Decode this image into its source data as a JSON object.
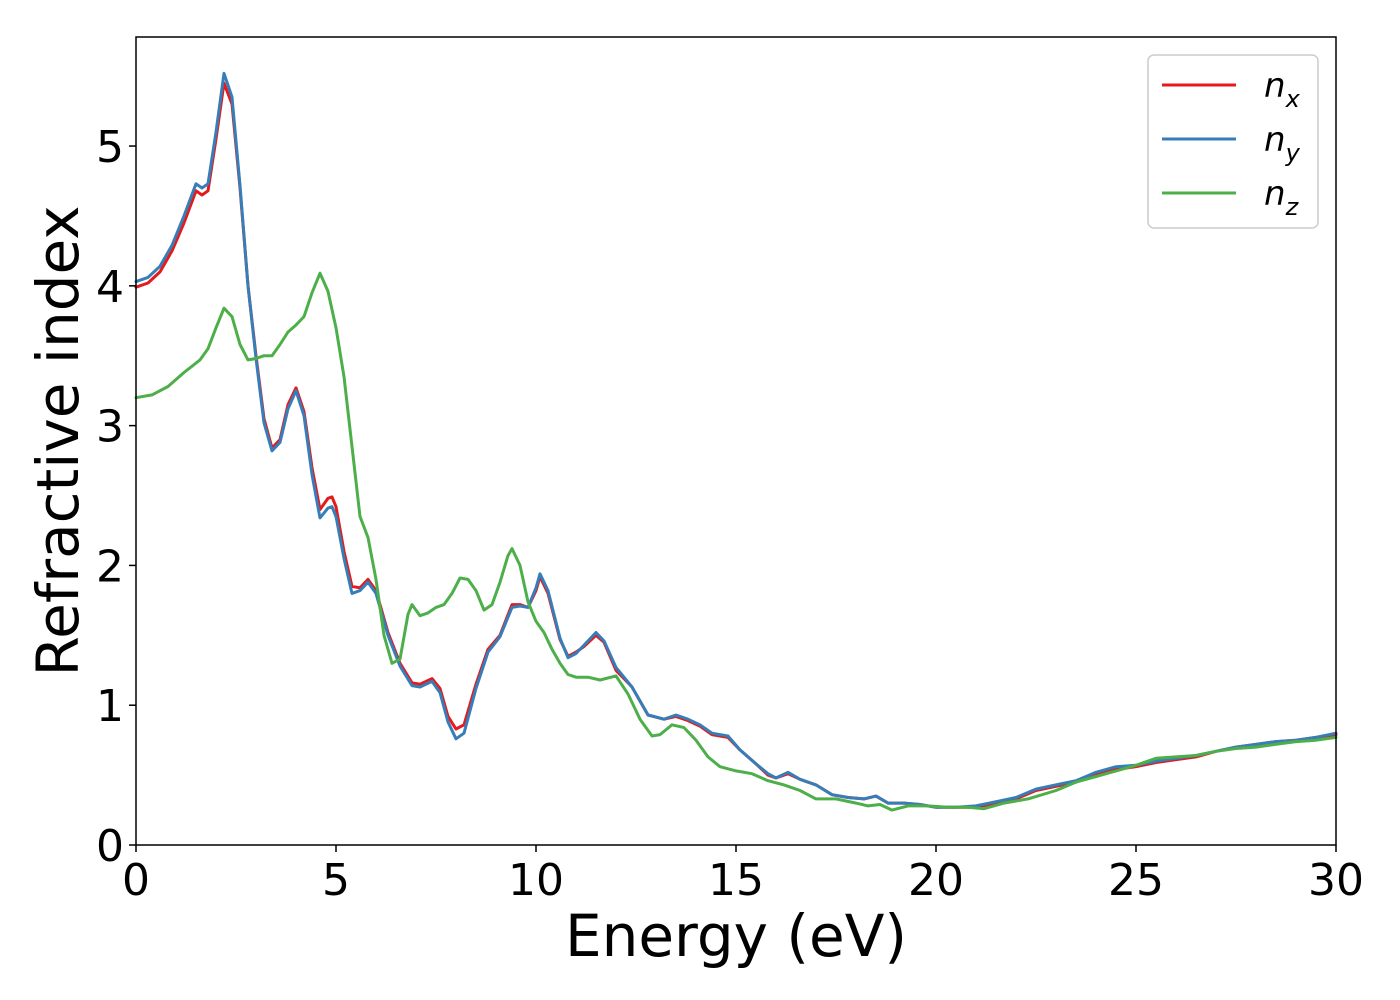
{
  "chart_data": {
    "type": "line",
    "title": "",
    "xlabel": "Energy (eV)",
    "ylabel": "Refractive index",
    "xlim": [
      0,
      30
    ],
    "ylim": [
      0,
      5.78
    ],
    "xticks": [
      0,
      5,
      10,
      15,
      20,
      25,
      30
    ],
    "xtick_labels": [
      "0",
      "5",
      "10",
      "15",
      "20",
      "25",
      "30"
    ],
    "yticks": [
      0,
      1,
      2,
      3,
      4,
      5
    ],
    "ytick_labels": [
      "0",
      "1",
      "2",
      "3",
      "4",
      "5"
    ],
    "grid": false,
    "legend_position": "top-right",
    "series": [
      {
        "name": "n_x",
        "legend_main": "n",
        "legend_sub": "x",
        "color": "#e41a1c",
        "points": [
          [
            0,
            3.99
          ],
          [
            0.3,
            4.02
          ],
          [
            0.6,
            4.1
          ],
          [
            0.9,
            4.25
          ],
          [
            1.2,
            4.45
          ],
          [
            1.5,
            4.68
          ],
          [
            1.65,
            4.65
          ],
          [
            1.8,
            4.68
          ],
          [
            2.0,
            5.05
          ],
          [
            2.2,
            5.45
          ],
          [
            2.4,
            5.3
          ],
          [
            2.6,
            4.7
          ],
          [
            2.8,
            4.0
          ],
          [
            3.0,
            3.5
          ],
          [
            3.2,
            3.05
          ],
          [
            3.4,
            2.84
          ],
          [
            3.6,
            2.9
          ],
          [
            3.8,
            3.15
          ],
          [
            4.0,
            3.27
          ],
          [
            4.2,
            3.1
          ],
          [
            4.4,
            2.7
          ],
          [
            4.6,
            2.4
          ],
          [
            4.8,
            2.48
          ],
          [
            4.9,
            2.49
          ],
          [
            5.0,
            2.42
          ],
          [
            5.2,
            2.1
          ],
          [
            5.4,
            1.85
          ],
          [
            5.6,
            1.84
          ],
          [
            5.8,
            1.9
          ],
          [
            6.0,
            1.82
          ],
          [
            6.3,
            1.52
          ],
          [
            6.6,
            1.3
          ],
          [
            6.9,
            1.16
          ],
          [
            7.1,
            1.15
          ],
          [
            7.4,
            1.19
          ],
          [
            7.6,
            1.12
          ],
          [
            7.8,
            0.92
          ],
          [
            8.0,
            0.83
          ],
          [
            8.2,
            0.86
          ],
          [
            8.5,
            1.15
          ],
          [
            8.8,
            1.4
          ],
          [
            9.1,
            1.5
          ],
          [
            9.4,
            1.72
          ],
          [
            9.6,
            1.72
          ],
          [
            9.8,
            1.7
          ],
          [
            10.0,
            1.82
          ],
          [
            10.1,
            1.92
          ],
          [
            10.3,
            1.8
          ],
          [
            10.6,
            1.47
          ],
          [
            10.8,
            1.35
          ],
          [
            11.0,
            1.38
          ],
          [
            11.2,
            1.42
          ],
          [
            11.5,
            1.5
          ],
          [
            11.7,
            1.45
          ],
          [
            12.0,
            1.25
          ],
          [
            12.4,
            1.13
          ],
          [
            12.8,
            0.93
          ],
          [
            13.2,
            0.9
          ],
          [
            13.5,
            0.92
          ],
          [
            13.8,
            0.89
          ],
          [
            14.1,
            0.85
          ],
          [
            14.4,
            0.79
          ],
          [
            14.8,
            0.77
          ],
          [
            15.1,
            0.68
          ],
          [
            15.5,
            0.58
          ],
          [
            15.8,
            0.5
          ],
          [
            16.0,
            0.48
          ],
          [
            16.3,
            0.51
          ],
          [
            16.6,
            0.47
          ],
          [
            17.0,
            0.43
          ],
          [
            17.4,
            0.36
          ],
          [
            17.8,
            0.34
          ],
          [
            18.2,
            0.33
          ],
          [
            18.5,
            0.35
          ],
          [
            18.8,
            0.3
          ],
          [
            19.2,
            0.3
          ],
          [
            19.6,
            0.29
          ],
          [
            20.0,
            0.27
          ],
          [
            20.5,
            0.27
          ],
          [
            21.0,
            0.27
          ],
          [
            21.5,
            0.3
          ],
          [
            22.0,
            0.33
          ],
          [
            22.5,
            0.39
          ],
          [
            23.0,
            0.42
          ],
          [
            23.5,
            0.45
          ],
          [
            24.0,
            0.51
          ],
          [
            24.5,
            0.54
          ],
          [
            25.0,
            0.56
          ],
          [
            25.5,
            0.59
          ],
          [
            26.0,
            0.61
          ],
          [
            26.5,
            0.63
          ],
          [
            27.0,
            0.67
          ],
          [
            27.5,
            0.7
          ],
          [
            28.0,
            0.72
          ],
          [
            28.5,
            0.74
          ],
          [
            29.0,
            0.75
          ],
          [
            29.5,
            0.77
          ],
          [
            30.0,
            0.79
          ]
        ]
      },
      {
        "name": "n_y",
        "legend_main": "n",
        "legend_sub": "y",
        "color": "#377eb8",
        "points": [
          [
            0,
            4.03
          ],
          [
            0.3,
            4.06
          ],
          [
            0.6,
            4.14
          ],
          [
            0.9,
            4.29
          ],
          [
            1.2,
            4.5
          ],
          [
            1.5,
            4.73
          ],
          [
            1.65,
            4.7
          ],
          [
            1.8,
            4.73
          ],
          [
            2.0,
            5.1
          ],
          [
            2.2,
            5.52
          ],
          [
            2.4,
            5.35
          ],
          [
            2.6,
            4.72
          ],
          [
            2.8,
            4.0
          ],
          [
            3.0,
            3.48
          ],
          [
            3.2,
            3.02
          ],
          [
            3.4,
            2.82
          ],
          [
            3.6,
            2.88
          ],
          [
            3.8,
            3.12
          ],
          [
            4.0,
            3.25
          ],
          [
            4.2,
            3.07
          ],
          [
            4.4,
            2.65
          ],
          [
            4.6,
            2.34
          ],
          [
            4.8,
            2.41
          ],
          [
            4.9,
            2.42
          ],
          [
            5.0,
            2.35
          ],
          [
            5.2,
            2.05
          ],
          [
            5.4,
            1.8
          ],
          [
            5.6,
            1.82
          ],
          [
            5.8,
            1.88
          ],
          [
            6.0,
            1.8
          ],
          [
            6.3,
            1.5
          ],
          [
            6.6,
            1.28
          ],
          [
            6.9,
            1.14
          ],
          [
            7.1,
            1.13
          ],
          [
            7.4,
            1.17
          ],
          [
            7.6,
            1.09
          ],
          [
            7.8,
            0.88
          ],
          [
            8.0,
            0.76
          ],
          [
            8.2,
            0.8
          ],
          [
            8.5,
            1.12
          ],
          [
            8.8,
            1.38
          ],
          [
            9.1,
            1.49
          ],
          [
            9.4,
            1.7
          ],
          [
            9.6,
            1.71
          ],
          [
            9.8,
            1.7
          ],
          [
            10.0,
            1.84
          ],
          [
            10.1,
            1.94
          ],
          [
            10.3,
            1.82
          ],
          [
            10.6,
            1.48
          ],
          [
            10.8,
            1.34
          ],
          [
            11.0,
            1.37
          ],
          [
            11.2,
            1.43
          ],
          [
            11.5,
            1.52
          ],
          [
            11.7,
            1.46
          ],
          [
            12.0,
            1.27
          ],
          [
            12.4,
            1.13
          ],
          [
            12.8,
            0.93
          ],
          [
            13.2,
            0.9
          ],
          [
            13.5,
            0.93
          ],
          [
            13.8,
            0.9
          ],
          [
            14.1,
            0.86
          ],
          [
            14.4,
            0.8
          ],
          [
            14.8,
            0.78
          ],
          [
            15.1,
            0.68
          ],
          [
            15.5,
            0.58
          ],
          [
            15.8,
            0.51
          ],
          [
            16.0,
            0.48
          ],
          [
            16.3,
            0.52
          ],
          [
            16.6,
            0.47
          ],
          [
            17.0,
            0.43
          ],
          [
            17.4,
            0.36
          ],
          [
            17.8,
            0.34
          ],
          [
            18.2,
            0.33
          ],
          [
            18.5,
            0.35
          ],
          [
            18.8,
            0.3
          ],
          [
            19.2,
            0.3
          ],
          [
            19.6,
            0.29
          ],
          [
            20.0,
            0.27
          ],
          [
            20.5,
            0.27
          ],
          [
            21.0,
            0.28
          ],
          [
            21.5,
            0.31
          ],
          [
            22.0,
            0.34
          ],
          [
            22.5,
            0.4
          ],
          [
            23.0,
            0.43
          ],
          [
            23.5,
            0.46
          ],
          [
            24.0,
            0.52
          ],
          [
            24.5,
            0.56
          ],
          [
            25.0,
            0.57
          ],
          [
            25.5,
            0.6
          ],
          [
            26.0,
            0.62
          ],
          [
            26.5,
            0.64
          ],
          [
            27.0,
            0.67
          ],
          [
            27.5,
            0.7
          ],
          [
            28.0,
            0.72
          ],
          [
            28.5,
            0.74
          ],
          [
            29.0,
            0.75
          ],
          [
            29.5,
            0.77
          ],
          [
            30.0,
            0.8
          ]
        ]
      },
      {
        "name": "n_z",
        "legend_main": "n",
        "legend_sub": "z",
        "color": "#4daf4a",
        "points": [
          [
            0,
            3.2
          ],
          [
            0.4,
            3.22
          ],
          [
            0.8,
            3.28
          ],
          [
            1.2,
            3.38
          ],
          [
            1.6,
            3.47
          ],
          [
            1.8,
            3.55
          ],
          [
            2.0,
            3.7
          ],
          [
            2.2,
            3.84
          ],
          [
            2.4,
            3.78
          ],
          [
            2.6,
            3.58
          ],
          [
            2.8,
            3.47
          ],
          [
            3.0,
            3.48
          ],
          [
            3.2,
            3.5
          ],
          [
            3.4,
            3.5
          ],
          [
            3.6,
            3.58
          ],
          [
            3.8,
            3.67
          ],
          [
            4.0,
            3.72
          ],
          [
            4.2,
            3.78
          ],
          [
            4.4,
            3.95
          ],
          [
            4.6,
            4.09
          ],
          [
            4.8,
            3.96
          ],
          [
            5.0,
            3.7
          ],
          [
            5.2,
            3.35
          ],
          [
            5.4,
            2.85
          ],
          [
            5.6,
            2.35
          ],
          [
            5.8,
            2.2
          ],
          [
            6.0,
            1.9
          ],
          [
            6.2,
            1.5
          ],
          [
            6.4,
            1.3
          ],
          [
            6.6,
            1.33
          ],
          [
            6.8,
            1.65
          ],
          [
            6.9,
            1.72
          ],
          [
            7.1,
            1.64
          ],
          [
            7.3,
            1.66
          ],
          [
            7.5,
            1.7
          ],
          [
            7.7,
            1.72
          ],
          [
            7.9,
            1.8
          ],
          [
            8.1,
            1.91
          ],
          [
            8.3,
            1.9
          ],
          [
            8.5,
            1.82
          ],
          [
            8.7,
            1.68
          ],
          [
            8.9,
            1.72
          ],
          [
            9.1,
            1.88
          ],
          [
            9.3,
            2.07
          ],
          [
            9.4,
            2.12
          ],
          [
            9.6,
            2.0
          ],
          [
            9.8,
            1.74
          ],
          [
            10.0,
            1.6
          ],
          [
            10.2,
            1.52
          ],
          [
            10.4,
            1.4
          ],
          [
            10.6,
            1.3
          ],
          [
            10.8,
            1.22
          ],
          [
            11.0,
            1.2
          ],
          [
            11.3,
            1.2
          ],
          [
            11.6,
            1.18
          ],
          [
            12.0,
            1.21
          ],
          [
            12.3,
            1.08
          ],
          [
            12.6,
            0.9
          ],
          [
            12.9,
            0.78
          ],
          [
            13.1,
            0.79
          ],
          [
            13.4,
            0.86
          ],
          [
            13.7,
            0.84
          ],
          [
            14.0,
            0.75
          ],
          [
            14.3,
            0.63
          ],
          [
            14.6,
            0.56
          ],
          [
            15.0,
            0.53
          ],
          [
            15.4,
            0.51
          ],
          [
            15.8,
            0.46
          ],
          [
            16.2,
            0.43
          ],
          [
            16.6,
            0.39
          ],
          [
            17.0,
            0.33
          ],
          [
            17.5,
            0.33
          ],
          [
            18.0,
            0.3
          ],
          [
            18.3,
            0.28
          ],
          [
            18.6,
            0.29
          ],
          [
            18.9,
            0.25
          ],
          [
            19.3,
            0.28
          ],
          [
            19.8,
            0.28
          ],
          [
            20.3,
            0.27
          ],
          [
            20.8,
            0.27
          ],
          [
            21.2,
            0.26
          ],
          [
            21.7,
            0.3
          ],
          [
            22.3,
            0.33
          ],
          [
            23.0,
            0.39
          ],
          [
            23.5,
            0.45
          ],
          [
            24.0,
            0.49
          ],
          [
            24.5,
            0.53
          ],
          [
            25.0,
            0.57
          ],
          [
            25.5,
            0.62
          ],
          [
            26.0,
            0.63
          ],
          [
            26.5,
            0.64
          ],
          [
            27.0,
            0.67
          ],
          [
            27.5,
            0.69
          ],
          [
            28.0,
            0.7
          ],
          [
            28.5,
            0.72
          ],
          [
            29.0,
            0.74
          ],
          [
            29.5,
            0.75
          ],
          [
            30.0,
            0.77
          ]
        ]
      }
    ]
  }
}
